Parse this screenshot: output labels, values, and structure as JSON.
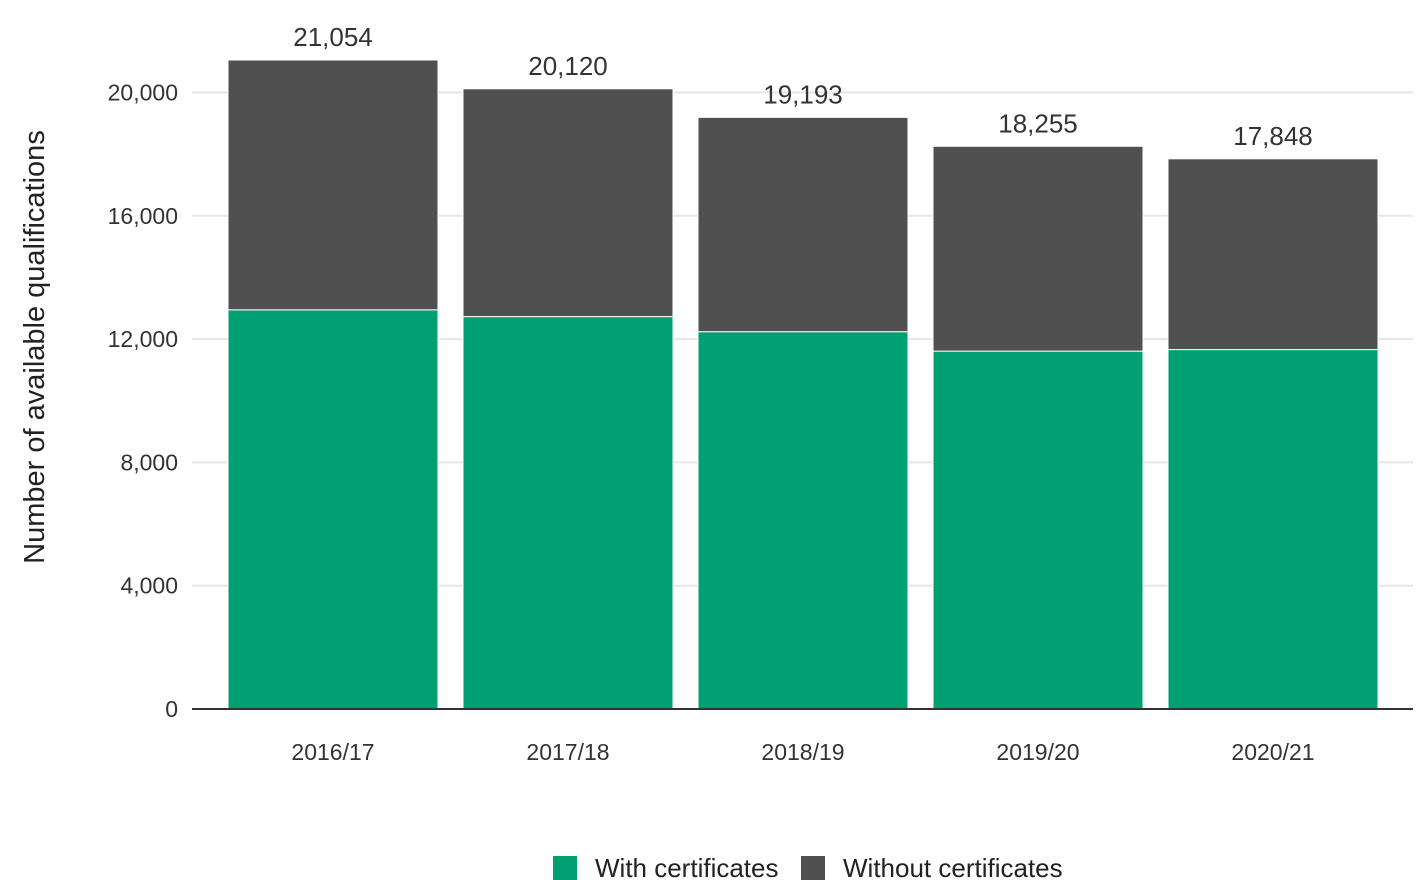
{
  "chart_data": {
    "type": "bar",
    "stacked": true,
    "categories": [
      "2016/17",
      "2017/18",
      "2018/19",
      "2019/20",
      "2020/21"
    ],
    "series": [
      {
        "name": "With certificates",
        "values": [
          12950,
          12730,
          12240,
          11610,
          11660
        ]
      },
      {
        "name": "Without certificates",
        "values": [
          8104,
          7390,
          6953,
          6645,
          6188
        ]
      }
    ],
    "totals": [
      21054,
      20120,
      19193,
      18255,
      17848
    ],
    "total_labels": [
      "21,054",
      "20,120",
      "19,193",
      "18,255",
      "17,848"
    ],
    "ylabel": "Number of available qualifications",
    "xlabel": "",
    "ylim": [
      0,
      21054
    ],
    "yticks": [
      0,
      4000,
      8000,
      12000,
      16000,
      20000
    ],
    "ytick_labels": [
      "0",
      "4,000",
      "8,000",
      "12,000",
      "16,000",
      "20,000"
    ],
    "grid": true,
    "legend_position": "bottom-center",
    "colors": {
      "With certificates": "#00a073",
      "Without certificates": "#505050",
      "grid": "#e6e6e6",
      "axis": "#333333"
    }
  }
}
